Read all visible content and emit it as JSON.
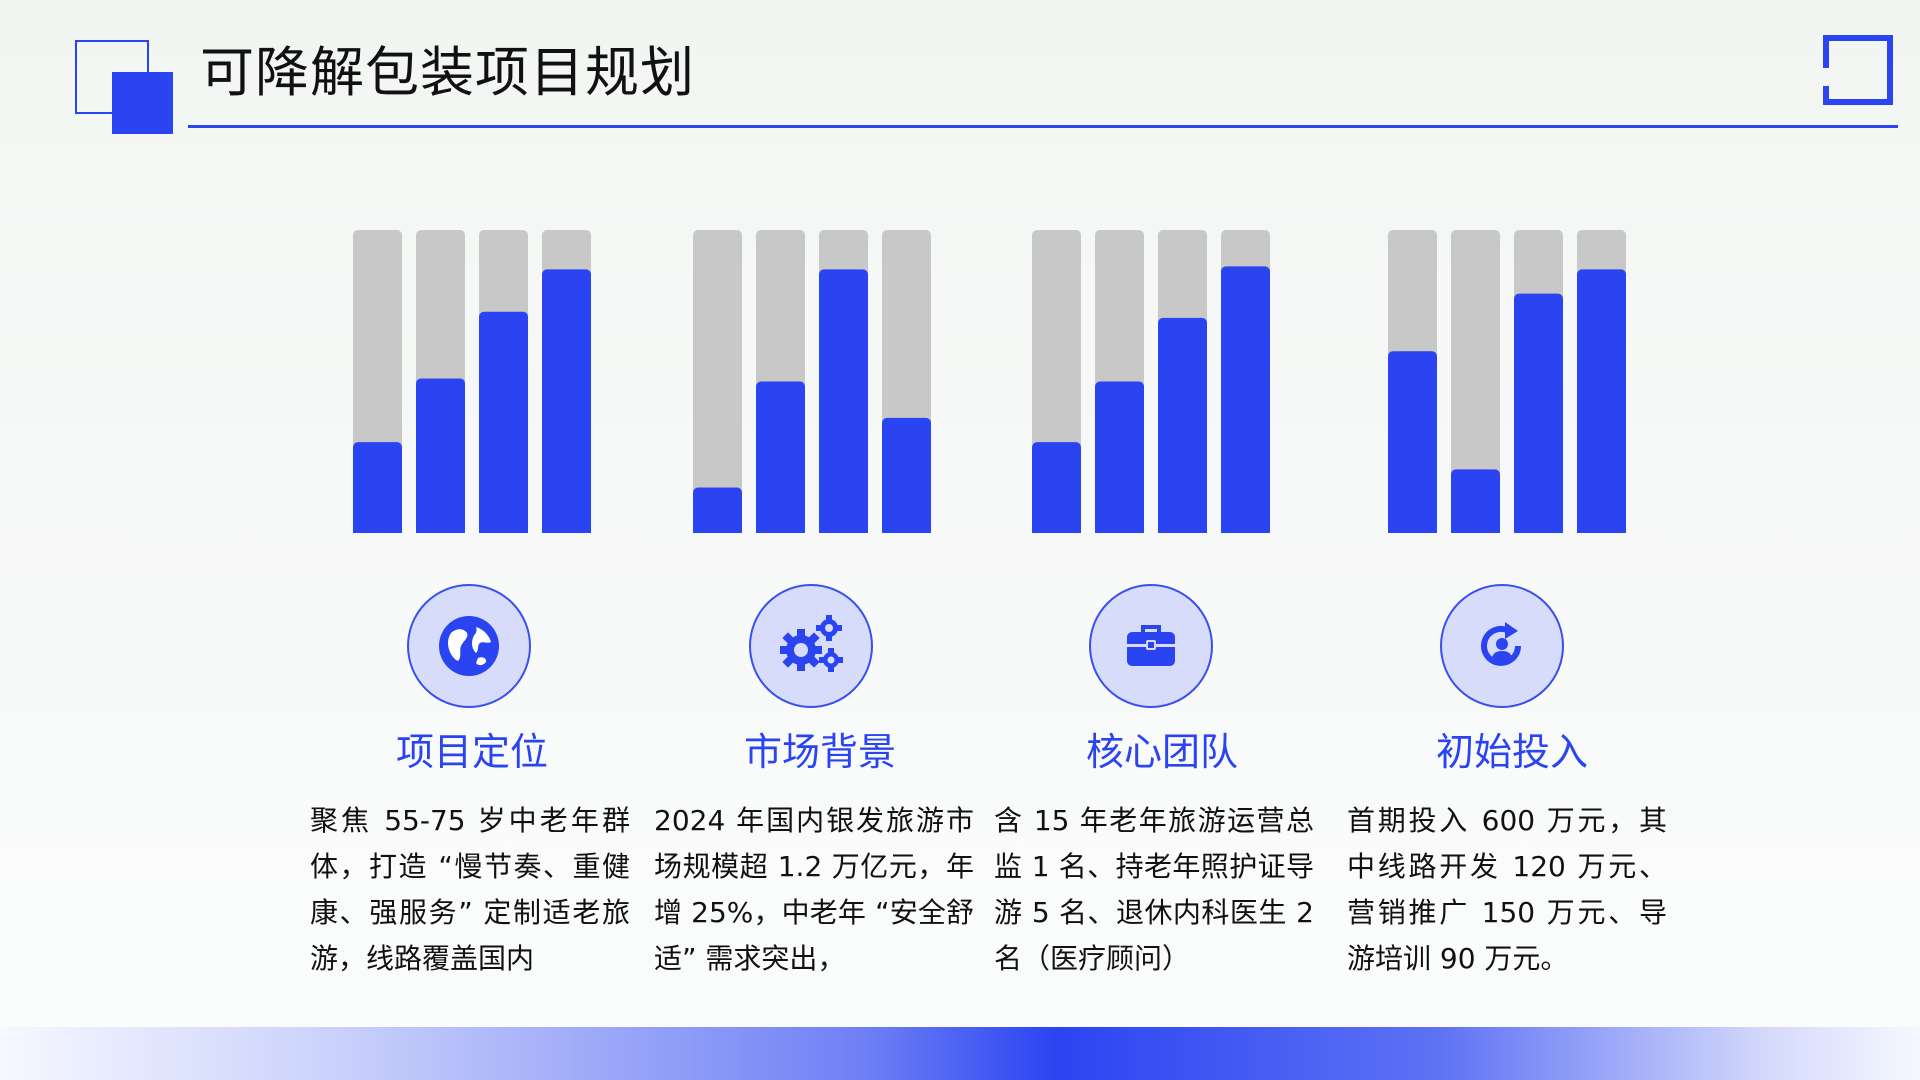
{
  "header": {
    "title": "可降解包装项目规划"
  },
  "colors": {
    "accent": "#2b44f2",
    "track": "#c8c8c8"
  },
  "chart_data": {
    "type": "bar",
    "style": "progress-bars",
    "max": 100,
    "groups": [
      {
        "values": [
          30,
          51,
          73,
          87
        ]
      },
      {
        "values": [
          15,
          50,
          87,
          38
        ]
      },
      {
        "values": [
          30,
          50,
          71,
          88
        ]
      },
      {
        "values": [
          60,
          21,
          79,
          87
        ]
      }
    ]
  },
  "columns": [
    {
      "icon": "globe-icon",
      "heading": "项目定位",
      "body": "聚焦 55-75 岁中老年群体，打造 “慢节奏、重健康、强服务” 定制适老旅游，线路覆盖国内"
    },
    {
      "icon": "gears-icon",
      "heading": "市场背景",
      "body": "2024 年国内银发旅游市场规模超 1.2 万亿元，年增 25%，中老年 “安全舒适” 需求突出，"
    },
    {
      "icon": "briefcase-icon",
      "heading": "核心团队",
      "body": "含 15 年老年旅游运营总监 1 名、持老年照护证导游 5 名、退休内科医生 2 名（医疗顾问）"
    },
    {
      "icon": "user-refresh-icon",
      "heading": "初始投入",
      "body": "首期投入 600 万元，其中线路开发 120 万元、营销推广 150 万元、导游培训 90 万元。"
    }
  ]
}
